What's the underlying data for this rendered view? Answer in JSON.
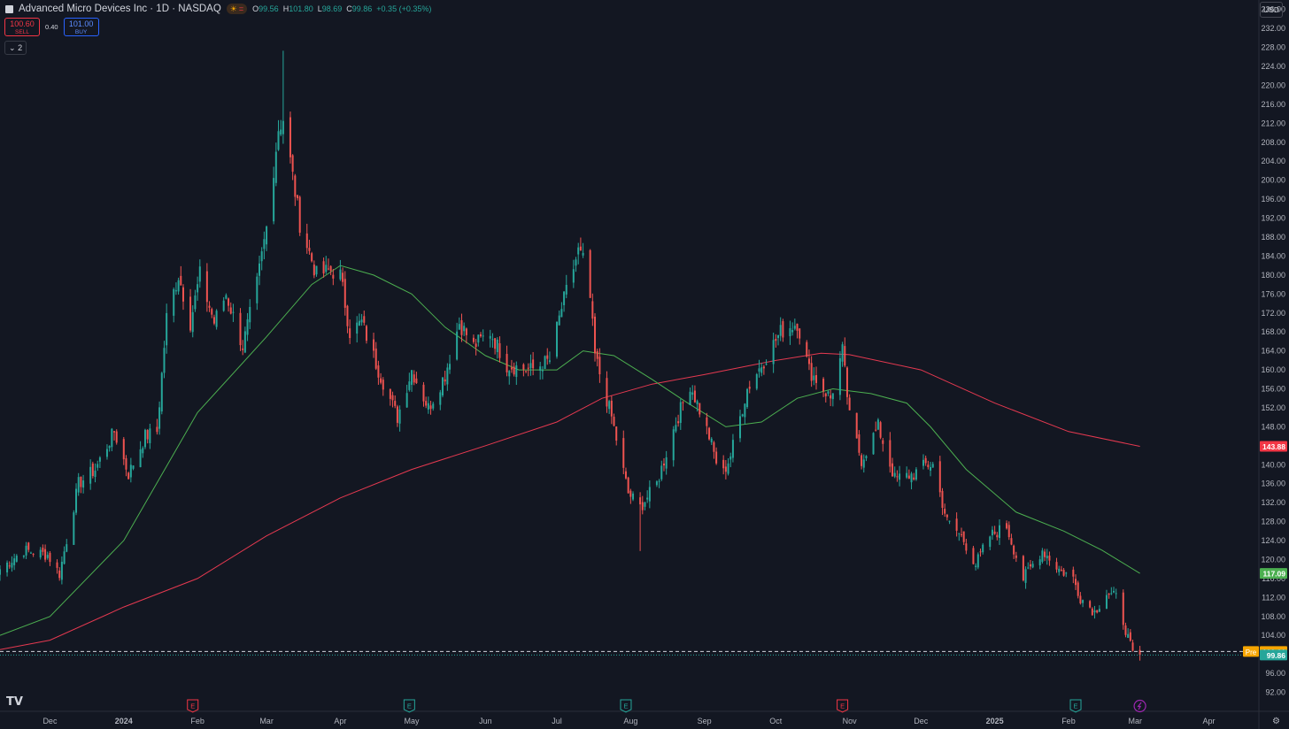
{
  "header": {
    "title": "Advanced Micro Devices Inc · 1D · NASDAQ",
    "ohlc": [
      {
        "k": "O",
        "v": "99.56"
      },
      {
        "k": "H",
        "v": "101.80"
      },
      {
        "k": "L",
        "v": "98.69"
      },
      {
        "k": "C",
        "v": "99.86"
      }
    ],
    "change": "+0.35 (+0.35%)"
  },
  "trade": {
    "sell_price": "100.60",
    "sell_label": "SELL",
    "spread": "0.40",
    "buy_price": "101.00",
    "buy_label": "BUY"
  },
  "indicators_toggle": "2",
  "currency": "USD",
  "logo": "TV",
  "chart_data": {
    "type": "candlestick",
    "title": "",
    "y_ticks": [
      92,
      96,
      100,
      104,
      108,
      112,
      116,
      120,
      124,
      128,
      132,
      136,
      140,
      144,
      148,
      152,
      156,
      160,
      164,
      168,
      172,
      176,
      180,
      184,
      188,
      192,
      196,
      200,
      204,
      208,
      212,
      216,
      220,
      224,
      228,
      232,
      236
    ],
    "ylim": [
      88,
      238
    ],
    "x_ticks": [
      "Dec",
      "2024",
      "Feb",
      "Mar",
      "Apr",
      "May",
      "Jun",
      "Jul",
      "Aug",
      "Sep",
      "Oct",
      "Nov",
      "Dec",
      "2025",
      "Feb",
      "Mar",
      "Apr"
    ],
    "x_tick_dates": [
      "2023-12-01",
      "2024-01-01",
      "2024-02-01",
      "2024-03-01",
      "2024-04-01",
      "2024-05-01",
      "2024-06-01",
      "2024-07-01",
      "2024-08-01",
      "2024-09-01",
      "2024-10-01",
      "2024-11-01",
      "2024-12-01",
      "2025-01-01",
      "2025-02-01",
      "2025-03-01",
      "2025-04-01"
    ],
    "xlim": [
      "2023-11-10",
      "2025-04-22"
    ],
    "price_path": [
      [
        "2023-11-10",
        118
      ],
      [
        "2023-11-20",
        122
      ],
      [
        "2023-11-30",
        121
      ],
      [
        "2023-12-05",
        117
      ],
      [
        "2023-12-13",
        136
      ],
      [
        "2023-12-20",
        139
      ],
      [
        "2023-12-28",
        147
      ],
      [
        "2024-01-03",
        138
      ],
      [
        "2024-01-10",
        146
      ],
      [
        "2024-01-15",
        147
      ],
      [
        "2024-01-19",
        171
      ],
      [
        "2024-01-24",
        180
      ],
      [
        "2024-01-29",
        170
      ],
      [
        "2024-02-02",
        180
      ],
      [
        "2024-02-08",
        170
      ],
      [
        "2024-02-13",
        176
      ],
      [
        "2024-02-20",
        165
      ],
      [
        "2024-02-26",
        178
      ],
      [
        "2024-03-01",
        190
      ],
      [
        "2024-03-06",
        211
      ],
      [
        "2024-03-08",
        213
      ],
      [
        "2024-03-11",
        204
      ],
      [
        "2024-03-15",
        191
      ],
      [
        "2024-03-22",
        180
      ],
      [
        "2024-03-28",
        181
      ],
      [
        "2024-04-01",
        180
      ],
      [
        "2024-04-05",
        168
      ],
      [
        "2024-04-10",
        170
      ],
      [
        "2024-04-17",
        160
      ],
      [
        "2024-04-25",
        150
      ],
      [
        "2024-05-01",
        160
      ],
      [
        "2024-05-08",
        152
      ],
      [
        "2024-05-15",
        159
      ],
      [
        "2024-05-21",
        170
      ],
      [
        "2024-05-27",
        165
      ],
      [
        "2024-06-03",
        168
      ],
      [
        "2024-06-10",
        161
      ],
      [
        "2024-06-20",
        160
      ],
      [
        "2024-06-28",
        162
      ],
      [
        "2024-07-03",
        173
      ],
      [
        "2024-07-10",
        185
      ],
      [
        "2024-07-14",
        181
      ],
      [
        "2024-07-17",
        163
      ],
      [
        "2024-07-24",
        150
      ],
      [
        "2024-07-31",
        134
      ],
      [
        "2024-08-05",
        131
      ],
      [
        "2024-08-12",
        136
      ],
      [
        "2024-08-20",
        149
      ],
      [
        "2024-08-26",
        157
      ],
      [
        "2024-09-03",
        146
      ],
      [
        "2024-09-08",
        137
      ],
      [
        "2024-09-12",
        142
      ],
      [
        "2024-09-19",
        156
      ],
      [
        "2024-09-26",
        162
      ],
      [
        "2024-10-03",
        168
      ],
      [
        "2024-10-10",
        170
      ],
      [
        "2024-10-15",
        160
      ],
      [
        "2024-10-24",
        154
      ],
      [
        "2024-10-29",
        164
      ],
      [
        "2024-11-01",
        150
      ],
      [
        "2024-11-06",
        141
      ],
      [
        "2024-11-13",
        148
      ],
      [
        "2024-11-20",
        137
      ],
      [
        "2024-11-28",
        138
      ],
      [
        "2024-12-03",
        140
      ],
      [
        "2024-12-06",
        140
      ],
      [
        "2024-12-12",
        128
      ],
      [
        "2024-12-18",
        125
      ],
      [
        "2024-12-24",
        119
      ],
      [
        "2024-12-30",
        125
      ],
      [
        "2025-01-06",
        127
      ],
      [
        "2025-01-13",
        116
      ],
      [
        "2025-01-21",
        122
      ],
      [
        "2025-01-28",
        118
      ],
      [
        "2025-02-03",
        116
      ],
      [
        "2025-02-06",
        112
      ],
      [
        "2025-02-12",
        109
      ],
      [
        "2025-02-17",
        113
      ],
      [
        "2025-02-21",
        112
      ],
      [
        "2025-02-24",
        107
      ],
      [
        "2025-02-28",
        100
      ],
      [
        "2025-03-03",
        99.86
      ]
    ],
    "extremes": [
      {
        "date": "2024-03-08",
        "high": 227.3
      },
      {
        "date": "2024-08-05",
        "low": 121.8
      },
      {
        "date": "2025-03-03",
        "high": 101.8,
        "low": 98.69
      }
    ],
    "ma_green_path": [
      [
        "2023-11-10",
        104
      ],
      [
        "2023-12-01",
        108
      ],
      [
        "2024-01-01",
        124
      ],
      [
        "2024-02-01",
        151
      ],
      [
        "2024-03-01",
        167
      ],
      [
        "2024-03-20",
        178
      ],
      [
        "2024-04-01",
        182
      ],
      [
        "2024-04-15",
        180
      ],
      [
        "2024-05-01",
        176
      ],
      [
        "2024-05-15",
        169
      ],
      [
        "2024-06-01",
        163
      ],
      [
        "2024-06-15",
        160
      ],
      [
        "2024-07-01",
        160
      ],
      [
        "2024-07-12",
        164
      ],
      [
        "2024-07-25",
        163
      ],
      [
        "2024-08-10",
        158
      ],
      [
        "2024-08-25",
        153
      ],
      [
        "2024-09-10",
        148
      ],
      [
        "2024-09-25",
        149
      ],
      [
        "2024-10-10",
        154
      ],
      [
        "2024-10-25",
        156
      ],
      [
        "2024-11-10",
        155
      ],
      [
        "2024-11-25",
        153
      ],
      [
        "2024-12-05",
        148
      ],
      [
        "2024-12-20",
        139
      ],
      [
        "2025-01-10",
        130
      ],
      [
        "2025-01-30",
        126
      ],
      [
        "2025-02-15",
        122
      ],
      [
        "2025-03-03",
        117.09
      ]
    ],
    "ma_red_path": [
      [
        "2023-11-10",
        101
      ],
      [
        "2023-12-01",
        103
      ],
      [
        "2024-01-01",
        110
      ],
      [
        "2024-02-01",
        116
      ],
      [
        "2024-03-01",
        125
      ],
      [
        "2024-04-01",
        133
      ],
      [
        "2024-05-01",
        139
      ],
      [
        "2024-06-01",
        144
      ],
      [
        "2024-07-01",
        149
      ],
      [
        "2024-07-20",
        154
      ],
      [
        "2024-08-10",
        157
      ],
      [
        "2024-09-01",
        159
      ],
      [
        "2024-10-01",
        162
      ],
      [
        "2024-10-20",
        163.5
      ],
      [
        "2024-11-01",
        163.2
      ],
      [
        "2024-12-01",
        160
      ],
      [
        "2025-01-01",
        153
      ],
      [
        "2025-02-01",
        147
      ],
      [
        "2025-03-03",
        143.88
      ]
    ],
    "event_markers": [
      {
        "date": "2024-01-30",
        "type": "E",
        "color": "#f23645"
      },
      {
        "date": "2024-04-30",
        "type": "E",
        "color": "#26a69a"
      },
      {
        "date": "2024-07-30",
        "type": "E",
        "color": "#26a69a"
      },
      {
        "date": "2024-10-29",
        "type": "E",
        "color": "#f23645"
      },
      {
        "date": "2025-02-04",
        "type": "E",
        "color": "#26a69a"
      },
      {
        "date": "2025-03-03",
        "type": "dividend",
        "color": "#9c27b0"
      }
    ],
    "price_labels": [
      {
        "value": 143.88,
        "text": "143.88",
        "bg": "#f23645"
      },
      {
        "value": 117.09,
        "text": "117.09",
        "bg": "#4caf50"
      },
      {
        "value": 100.61,
        "text": "100.61",
        "bg": "#f7a600",
        "tag": "Pre"
      },
      {
        "value": 99.86,
        "text": "99.86",
        "bg": "#26a69a"
      }
    ],
    "premarket_line": 100.61,
    "last_price": 99.86,
    "colors": {
      "up": "#26a69a",
      "down": "#ef5350",
      "grid": "#1e222d",
      "axis_text": "#b2b5be",
      "ma_green": "#4caf50",
      "ma_red": "#e53950"
    }
  }
}
